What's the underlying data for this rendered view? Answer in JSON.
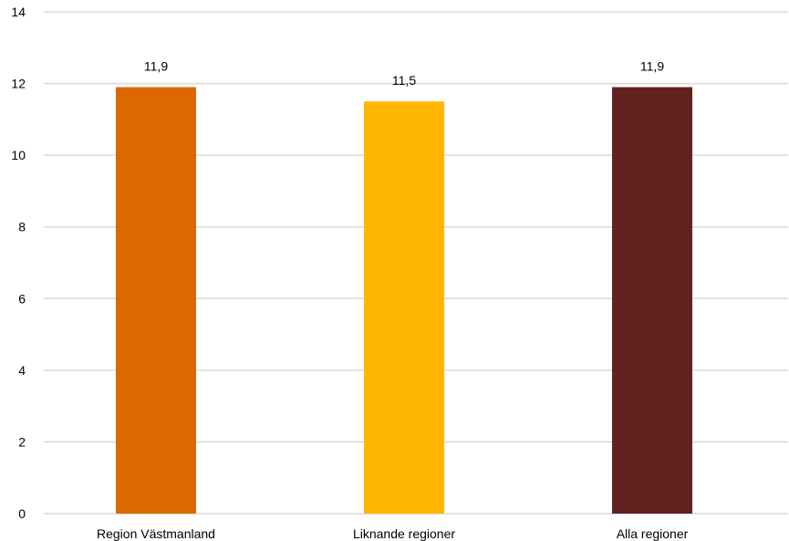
{
  "chart_data": {
    "type": "bar",
    "categories": [
      "Region Västmanland",
      "Liknande regioner",
      "Alla regioner"
    ],
    "values": [
      11.9,
      11.5,
      11.9
    ],
    "data_labels": [
      "11,9",
      "11,5",
      "11,9"
    ],
    "colors": [
      "#dc6900",
      "#ffb600",
      "#602320"
    ],
    "ylim": [
      0,
      14
    ],
    "yticks": [
      0,
      2,
      4,
      6,
      8,
      10,
      12,
      14
    ],
    "grid": true,
    "title": "",
    "xlabel": "",
    "ylabel": ""
  }
}
